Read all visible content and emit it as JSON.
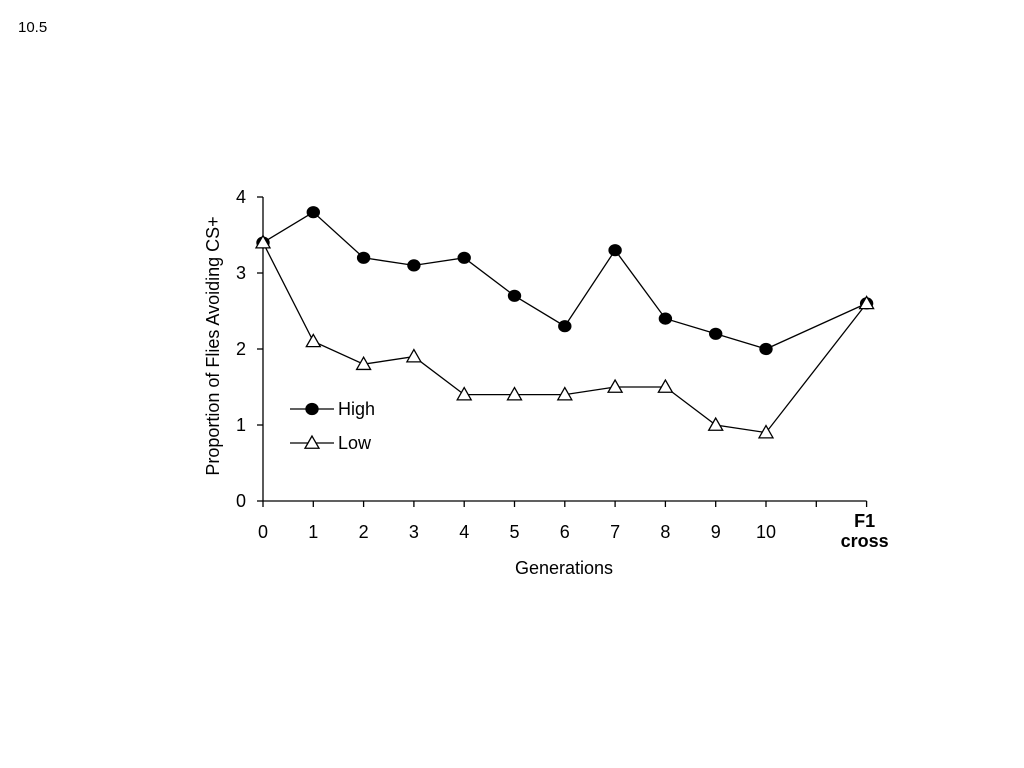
{
  "slide": {
    "number_label": "10.5"
  },
  "chart_data": {
    "type": "line",
    "title": "",
    "xlabel": "Generations",
    "ylabel": "Proportion of Flies Avoiding CS+",
    "categories": [
      "0",
      "1",
      "2",
      "3",
      "4",
      "5",
      "6",
      "7",
      "8",
      "9",
      "10",
      "",
      "F1 cross"
    ],
    "ylim": [
      0,
      4
    ],
    "yticks": [
      0,
      1,
      2,
      3,
      4
    ],
    "grid": false,
    "legend_position": "lower-left",
    "series": [
      {
        "name": "High",
        "marker": "filled-circle",
        "color": "#000000",
        "values": [
          3.4,
          3.8,
          3.2,
          3.1,
          3.2,
          2.7,
          2.3,
          3.3,
          2.4,
          2.2,
          2.0,
          null,
          2.6
        ]
      },
      {
        "name": "Low",
        "marker": "open-triangle",
        "color": "#000000",
        "values": [
          3.4,
          2.1,
          1.8,
          1.9,
          1.4,
          1.4,
          1.4,
          1.5,
          1.5,
          1.0,
          0.9,
          null,
          2.6
        ]
      }
    ]
  }
}
